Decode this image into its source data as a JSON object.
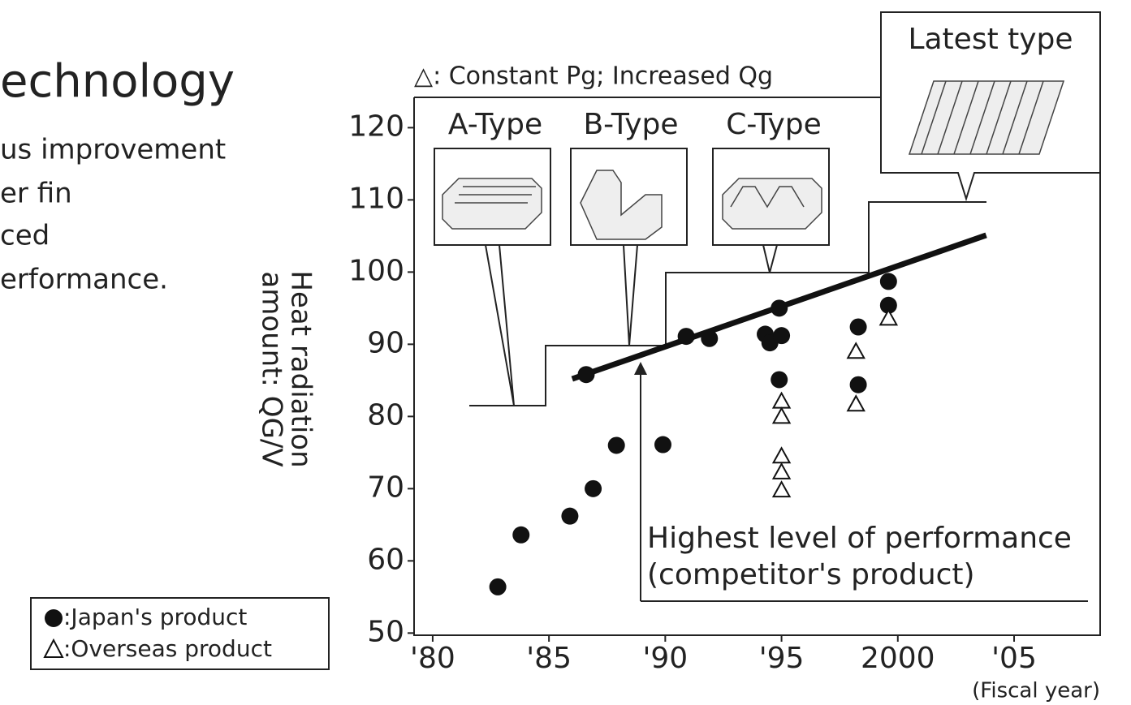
{
  "side_text": {
    "title": "echnology",
    "lines": [
      "us improvement",
      "er fin",
      "ced",
      "erformance."
    ]
  },
  "chart_data": {
    "type": "scatter",
    "y_label": [
      "Heat radiation",
      "amount: QG/V"
    ],
    "x_label": "(Fiscal year)",
    "annotations": {
      "note": "△: Constant Pg; Increased Qg",
      "types": [
        "A-Type",
        "B-Type",
        "C-Type"
      ],
      "latest": "Latest type",
      "highest": [
        "Highest level of performance",
        "(competitor's product)"
      ]
    },
    "xlim": [
      1979.2,
      2008.7
    ],
    "ylim": [
      49.7,
      124.2
    ],
    "xticks": [
      {
        "value": 1980,
        "label": "'80"
      },
      {
        "value": 1985,
        "label": "'85"
      },
      {
        "value": 1990,
        "label": "'90"
      },
      {
        "value": 1995,
        "label": "'95"
      },
      2000,
      {
        "value": 2005,
        "label": "'05"
      }
    ],
    "yticks": [
      50,
      60,
      70,
      80,
      90,
      100,
      110,
      120
    ],
    "series": [
      {
        "name": ":Japan's product",
        "marker": "circle",
        "color": "#111111",
        "x": [
          1982.8,
          1983.8,
          1985.9,
          1986.9,
          1987.9,
          1989.9,
          1986.6,
          1990.9,
          1991.9,
          1994.3,
          1994.5,
          1995.0,
          1994.9,
          1994.9,
          1998.3,
          1998.3,
          1999.6,
          1999.6
        ],
        "values": [
          56.4,
          63.6,
          66.2,
          70.0,
          76.0,
          76.1,
          85.8,
          91.1,
          90.8,
          91.4,
          90.2,
          91.2,
          95.0,
          85.1,
          92.4,
          84.4,
          98.7,
          95.4
        ]
      },
      {
        "name": ":Overseas product",
        "marker": "triangle",
        "color": "#111111",
        "x": [
          1995.0,
          1995.0,
          1995.0,
          1995.0,
          1995.0,
          1998.2,
          1998.2,
          1999.6
        ],
        "values": [
          82.1,
          80.0,
          74.5,
          72.3,
          69.8,
          89.0,
          81.7,
          93.6
        ]
      }
    ],
    "trend": {
      "x": [
        1986.0,
        2003.8
      ],
      "values": [
        85.2,
        105.1
      ],
      "color": "#111111"
    }
  }
}
